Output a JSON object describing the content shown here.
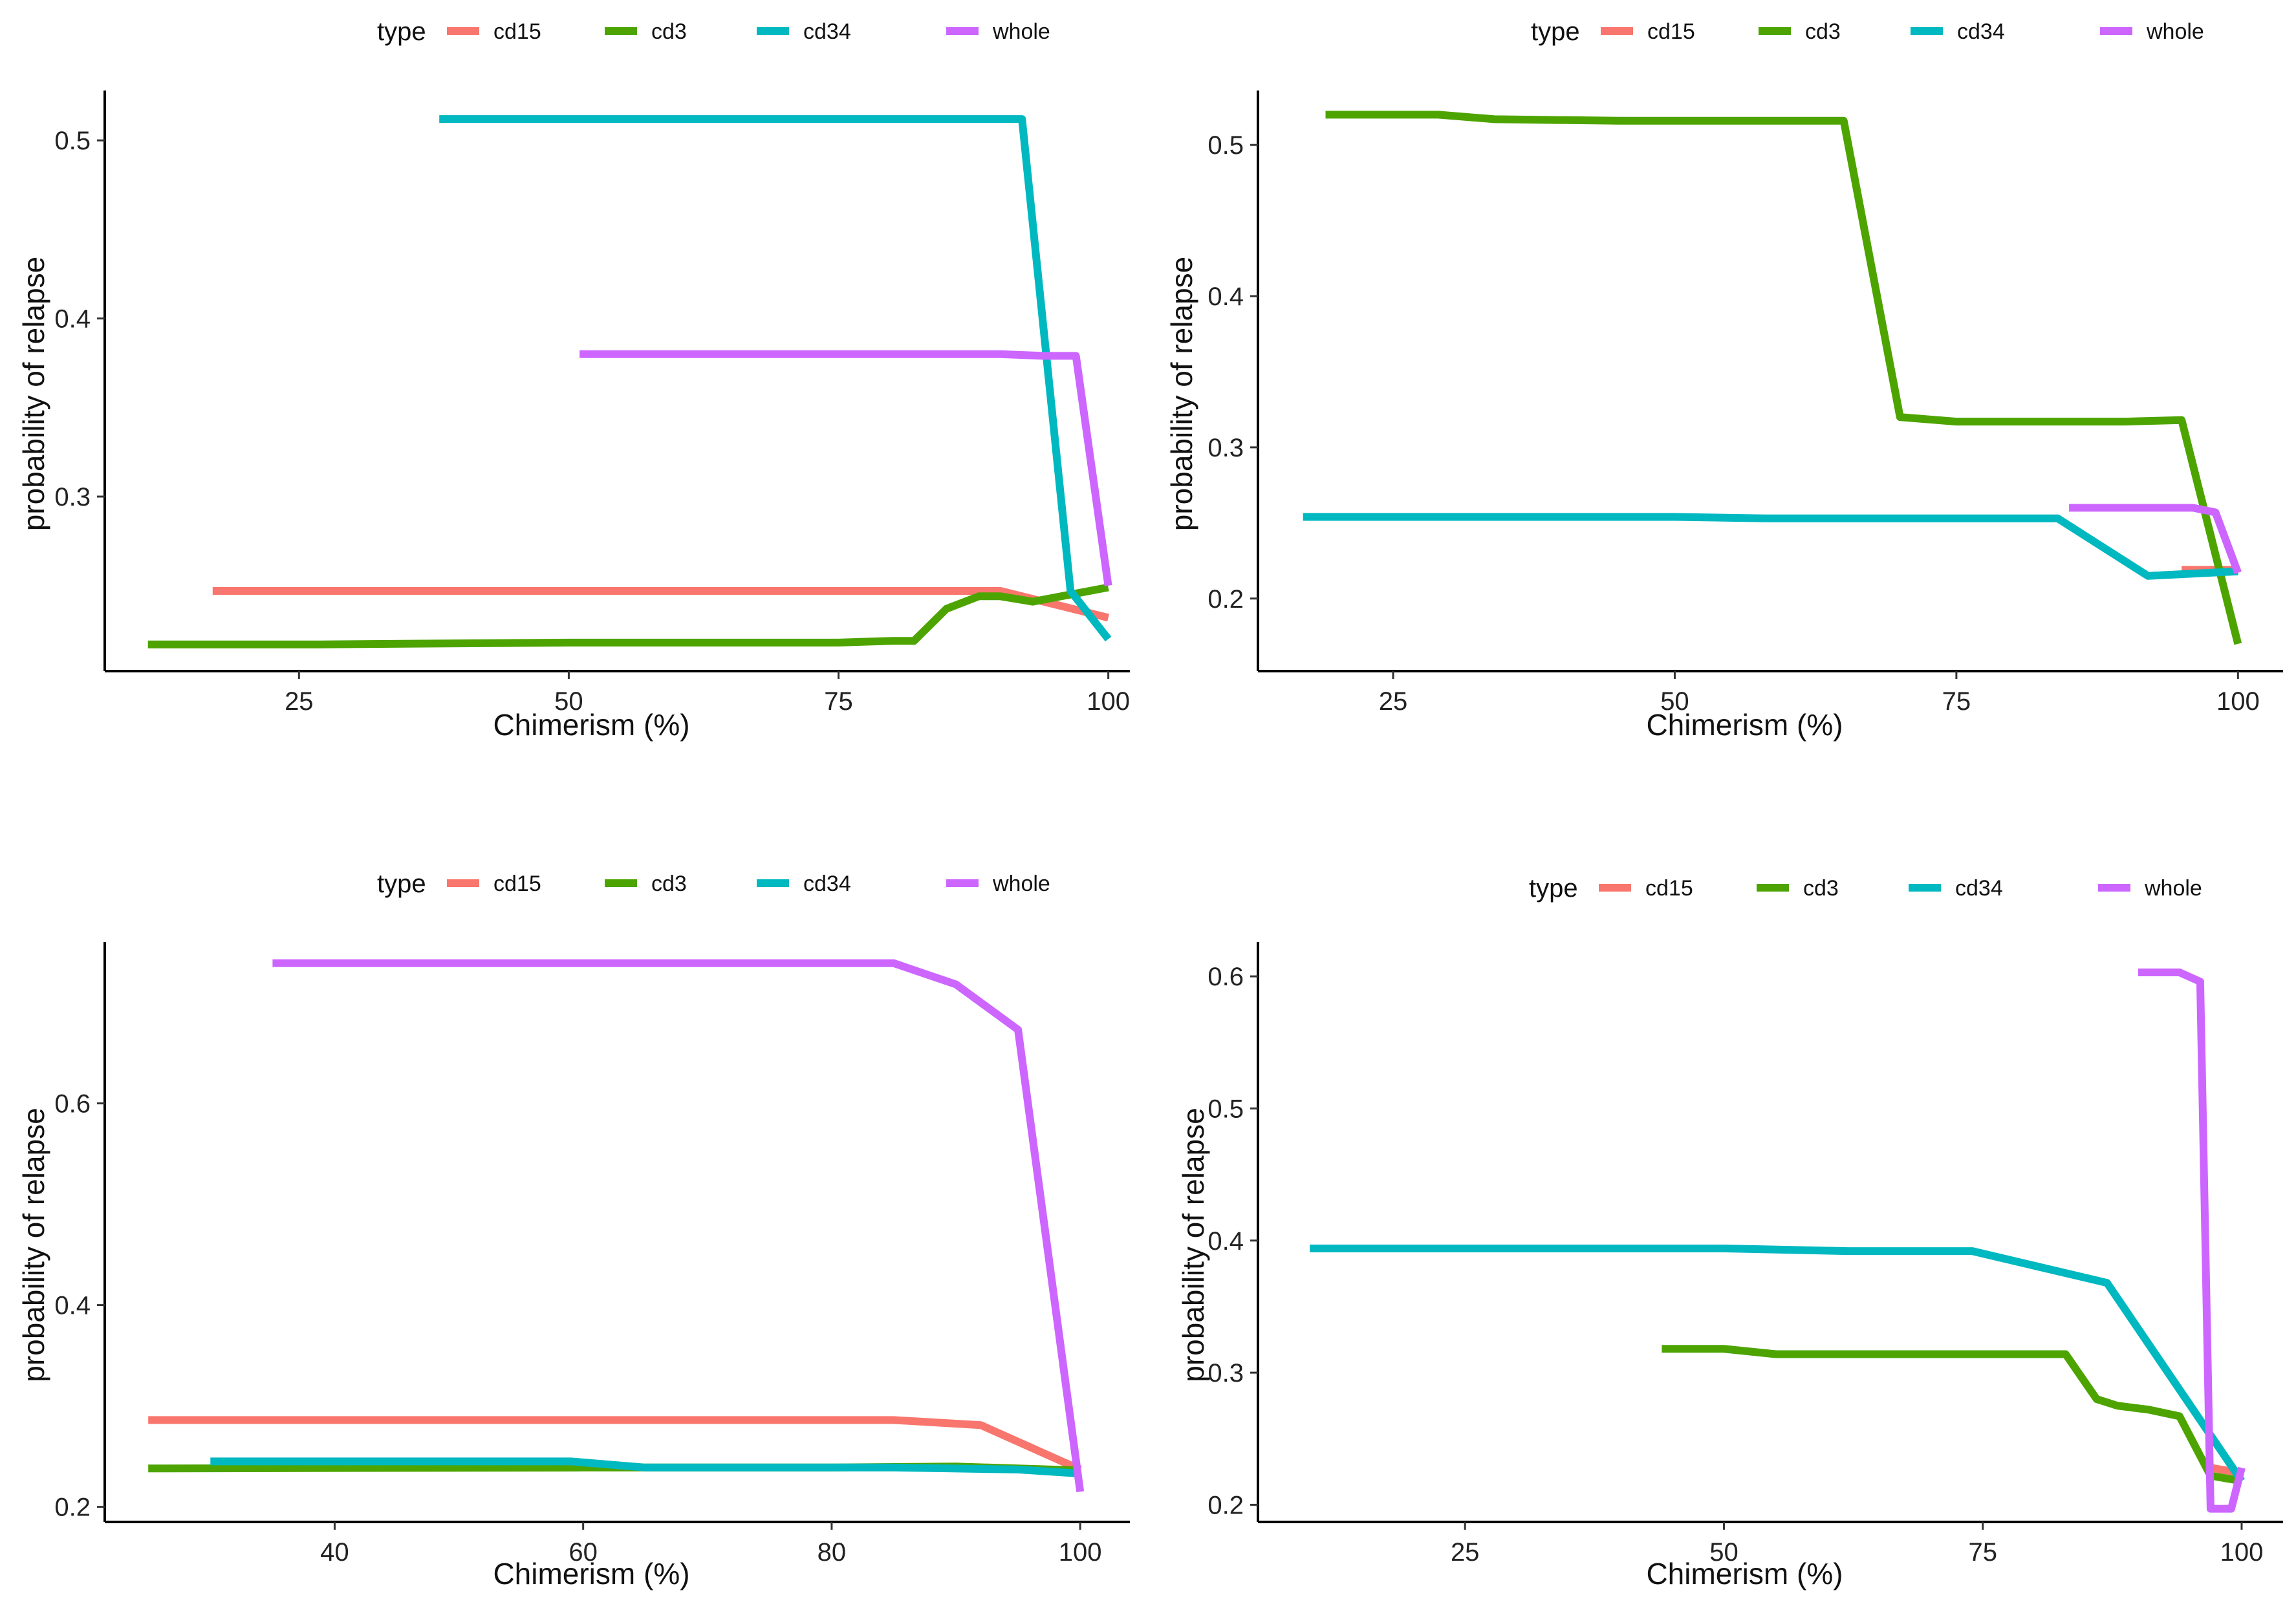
{
  "colors": {
    "cd15": "#f8766d",
    "cd3": "#4da400",
    "cd34": "#00b8c0",
    "whole": "#cc66ff"
  },
  "chart_data": [
    {
      "type": "line",
      "legend": {
        "title": "type",
        "entries": [
          "cd15",
          "cd3",
          "cd34",
          "whole"
        ]
      },
      "xlabel": "Chimerism (%)",
      "ylabel": "probability of relapse",
      "xlim": [
        7,
        102
      ],
      "ylim": [
        0.202,
        0.528
      ],
      "xticks": [
        25,
        50,
        75,
        100
      ],
      "xtick_labels": [
        "25",
        "50",
        "75",
        "100"
      ],
      "yticks": [
        0.3,
        0.4,
        0.5
      ],
      "ytick_labels": [
        "0.3",
        "0.4",
        "0.5"
      ],
      "series": [
        {
          "name": "cd15",
          "x": [
            17,
            90,
            100
          ],
          "y": [
            0.247,
            0.247,
            0.232
          ]
        },
        {
          "name": "cd3",
          "x": [
            11,
            27,
            50,
            75,
            80,
            82,
            85,
            88,
            90,
            93,
            100
          ],
          "y": [
            0.217,
            0.217,
            0.218,
            0.218,
            0.219,
            0.219,
            0.237,
            0.244,
            0.244,
            0.241,
            0.249
          ]
        },
        {
          "name": "cd34",
          "x": [
            38,
            92,
            96.5,
            100
          ],
          "y": [
            0.512,
            0.512,
            0.247,
            0.22
          ]
        },
        {
          "name": "whole",
          "x": [
            51,
            90,
            94,
            97,
            100
          ],
          "y": [
            0.38,
            0.38,
            0.379,
            0.379,
            0.25
          ]
        }
      ]
    },
    {
      "type": "line",
      "legend": {
        "title": "type",
        "entries": [
          "cd15",
          "cd3",
          "cd34",
          "whole"
        ]
      },
      "xlabel": "Chimerism (%)",
      "ylabel": "probability of relapse",
      "xlim": [
        13,
        104
      ],
      "ylim": [
        0.152,
        0.536
      ],
      "xticks": [
        25,
        50,
        75,
        100
      ],
      "xtick_labels": [
        "25",
        "50",
        "75",
        "100"
      ],
      "yticks": [
        0.2,
        0.3,
        0.4,
        0.5
      ],
      "ytick_labels": [
        "0.2",
        "0.3",
        "0.4",
        "0.5"
      ],
      "series": [
        {
          "name": "cd15",
          "x": [
            95,
            100
          ],
          "y": [
            0.219,
            0.219
          ]
        },
        {
          "name": "cd3",
          "x": [
            19,
            29,
            34,
            45,
            65,
            70,
            75,
            90,
            95,
            100
          ],
          "y": [
            0.52,
            0.52,
            0.517,
            0.516,
            0.516,
            0.32,
            0.317,
            0.317,
            0.318,
            0.17
          ]
        },
        {
          "name": "cd34",
          "x": [
            17,
            50,
            58,
            84,
            92,
            100
          ],
          "y": [
            0.254,
            0.254,
            0.253,
            0.253,
            0.215,
            0.218
          ]
        },
        {
          "name": "whole",
          "x": [
            85,
            96,
            98,
            100
          ],
          "y": [
            0.26,
            0.26,
            0.257,
            0.217
          ]
        }
      ]
    },
    {
      "type": "line",
      "legend": {
        "title": "type",
        "entries": [
          "cd15",
          "cd3",
          "cd34",
          "whole"
        ]
      },
      "xlabel": "Chimerism (%)",
      "ylabel": "probability of relapse",
      "xlim": [
        21.5,
        104
      ],
      "ylim": [
        0.185,
        0.76
      ],
      "xticks": [
        40,
        60,
        80,
        100
      ],
      "xtick_labels": [
        "40",
        "60",
        "80",
        "100"
      ],
      "yticks": [
        0.2,
        0.4,
        0.6
      ],
      "ytick_labels": [
        "0.2",
        "0.4",
        "0.6"
      ],
      "series": [
        {
          "name": "cd15",
          "x": [
            25,
            85,
            92,
            100
          ],
          "y": [
            0.286,
            0.286,
            0.281,
            0.237
          ]
        },
        {
          "name": "cd3",
          "x": [
            25,
            60,
            80,
            90,
            100
          ],
          "y": [
            0.238,
            0.239,
            0.239,
            0.24,
            0.236
          ]
        },
        {
          "name": "cd34",
          "x": [
            30,
            59,
            65,
            85,
            95,
            100
          ],
          "y": [
            0.245,
            0.245,
            0.239,
            0.239,
            0.237,
            0.233
          ]
        },
        {
          "name": "whole",
          "x": [
            35,
            85,
            90,
            95,
            100
          ],
          "y": [
            0.739,
            0.739,
            0.718,
            0.673,
            0.215
          ]
        }
      ]
    },
    {
      "type": "line",
      "legend": {
        "title": "type",
        "entries": [
          "cd15",
          "cd3",
          "cd34",
          "whole"
        ]
      },
      "xlabel": "Chimerism (%)",
      "ylabel": "probability of relapse",
      "xlim": [
        5,
        104
      ],
      "ylim": [
        0.187,
        0.626
      ],
      "xticks": [
        25,
        50,
        75,
        100
      ],
      "xtick_labels": [
        "25",
        "50",
        "75",
        "100"
      ],
      "yticks": [
        0.2,
        0.3,
        0.4,
        0.5,
        0.6
      ],
      "ytick_labels": [
        "0.2",
        "0.3",
        "0.4",
        "0.5",
        "0.6"
      ],
      "series": [
        {
          "name": "cd15",
          "x": [
            97,
            100
          ],
          "y": [
            0.228,
            0.224
          ]
        },
        {
          "name": "cd3",
          "x": [
            44,
            50,
            55,
            83,
            86,
            88,
            91,
            94,
            97,
            100
          ],
          "y": [
            0.318,
            0.318,
            0.314,
            0.314,
            0.28,
            0.275,
            0.272,
            0.267,
            0.222,
            0.218
          ]
        },
        {
          "name": "cd34",
          "x": [
            10,
            50,
            62,
            74,
            87,
            100
          ],
          "y": [
            0.394,
            0.394,
            0.392,
            0.392,
            0.368,
            0.218
          ]
        },
        {
          "name": "whole",
          "x": [
            90,
            94,
            96,
            97,
            98,
            99,
            100
          ],
          "y": [
            0.603,
            0.603,
            0.596,
            0.197,
            0.197,
            0.197,
            0.228
          ]
        }
      ]
    }
  ]
}
